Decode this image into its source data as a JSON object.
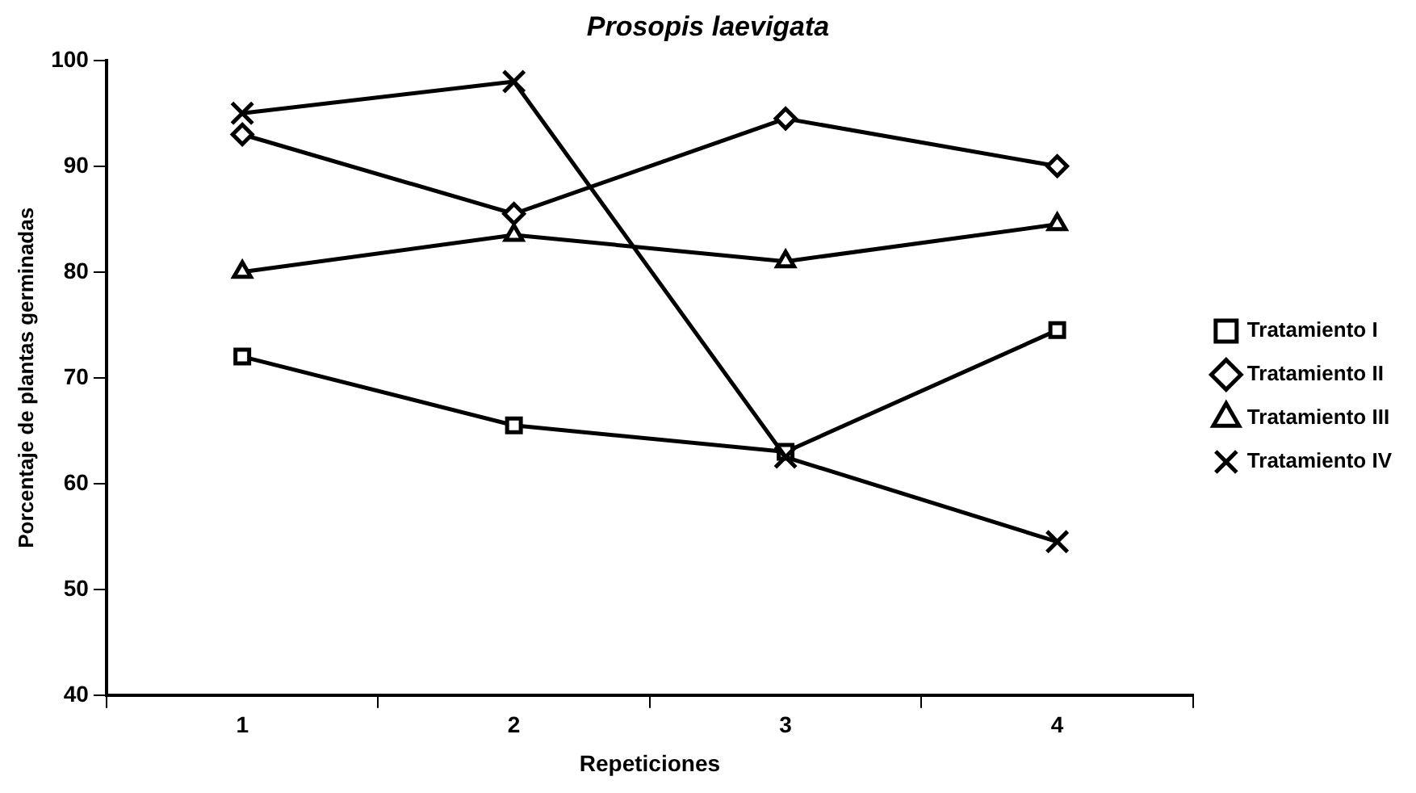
{
  "chart_data": {
    "type": "line",
    "title": "Prosopis laevigata",
    "xlabel": "Repeticiones",
    "ylabel": "Porcentaje de plantas germinadas",
    "categories": [
      "1",
      "2",
      "3",
      "4"
    ],
    "series": [
      {
        "name": "Tratamiento I",
        "color": "#000000",
        "marker": "square",
        "values": [
          72,
          65.5,
          63,
          74.5
        ]
      },
      {
        "name": "Tratamiento II",
        "color": "#000000",
        "marker": "diamond",
        "values": [
          93,
          85.5,
          94.5,
          90
        ]
      },
      {
        "name": "Tratamiento III",
        "color": "#000000",
        "marker": "triangle",
        "values": [
          80,
          83.5,
          81,
          84.5
        ]
      },
      {
        "name": "Tratamiento IV",
        "color": "#000000",
        "marker": "cross",
        "values": [
          95,
          98,
          62.5,
          54.5
        ]
      }
    ],
    "ylim": [
      40,
      100
    ],
    "yticks": [
      40,
      50,
      60,
      70,
      80,
      90,
      100
    ],
    "grid": false,
    "legend": "right",
    "line_style": "solid"
  }
}
